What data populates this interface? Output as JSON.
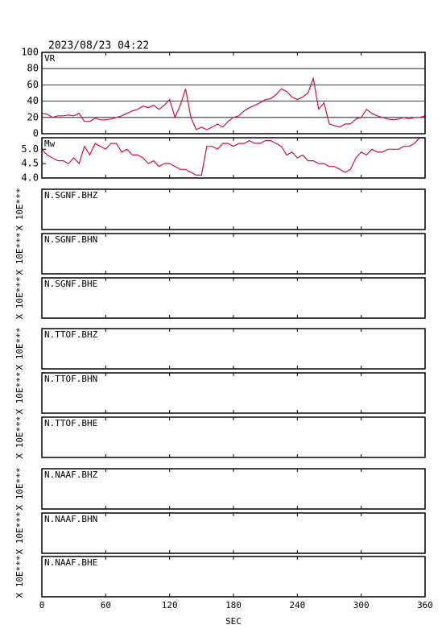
{
  "time": "2023/08/23 04:22",
  "x_axis": {
    "label": "SEC",
    "xlim": [
      0,
      360
    ],
    "xticks": [
      0,
      60,
      120,
      180,
      240,
      300,
      360
    ]
  },
  "chart_data": [
    {
      "type": "line",
      "label": "VR",
      "color": "#d0103a",
      "grid": true,
      "xlim": [
        0,
        360
      ],
      "ylim": [
        0,
        100
      ],
      "yticks": [
        0,
        20,
        40,
        60,
        80,
        100
      ],
      "x": [
        0,
        5,
        10,
        15,
        20,
        25,
        30,
        35,
        40,
        45,
        50,
        55,
        60,
        65,
        70,
        75,
        80,
        85,
        90,
        95,
        100,
        105,
        110,
        115,
        120,
        125,
        130,
        135,
        140,
        145,
        150,
        155,
        160,
        165,
        170,
        175,
        180,
        185,
        190,
        195,
        200,
        205,
        210,
        215,
        220,
        225,
        230,
        235,
        240,
        245,
        250,
        255,
        260,
        265,
        270,
        275,
        280,
        285,
        290,
        295,
        300,
        305,
        310,
        315,
        320,
        325,
        330,
        335,
        340,
        345,
        350,
        355,
        360
      ],
      "values": [
        25,
        24,
        20,
        22,
        22,
        23,
        22,
        25,
        15,
        15,
        19,
        17,
        17,
        18,
        20,
        22,
        25,
        28,
        30,
        34,
        32,
        35,
        30,
        35,
        42,
        20,
        35,
        55,
        20,
        5,
        8,
        5,
        8,
        12,
        8,
        15,
        20,
        22,
        28,
        32,
        35,
        38,
        42,
        43,
        48,
        55,
        52,
        45,
        42,
        45,
        50,
        68,
        30,
        38,
        12,
        10,
        8,
        12,
        12,
        18,
        20,
        30,
        25,
        22,
        20,
        18,
        17,
        18,
        20,
        18,
        20,
        20,
        22
      ]
    },
    {
      "type": "line",
      "label": "Mw",
      "color": "#d0103a",
      "grid": false,
      "xlim": [
        0,
        360
      ],
      "ylim": [
        4,
        5.4
      ],
      "yticks": [
        {
          "value": 4,
          "label": "4.0"
        },
        {
          "value": 4.5,
          "label": "4.5"
        },
        {
          "value": 5,
          "label": "5.0"
        }
      ],
      "x": [
        0,
        5,
        10,
        15,
        20,
        25,
        30,
        35,
        40,
        45,
        50,
        55,
        60,
        65,
        70,
        75,
        80,
        85,
        90,
        95,
        100,
        105,
        110,
        115,
        120,
        125,
        130,
        135,
        140,
        145,
        150,
        155,
        160,
        165,
        170,
        175,
        180,
        185,
        190,
        195,
        200,
        205,
        210,
        215,
        220,
        225,
        230,
        235,
        240,
        245,
        250,
        255,
        260,
        265,
        270,
        275,
        280,
        285,
        290,
        295,
        300,
        305,
        310,
        315,
        320,
        325,
        330,
        335,
        340,
        345,
        350,
        355,
        360
      ],
      "values": [
        5.0,
        4.8,
        4.7,
        4.6,
        4.6,
        4.5,
        4.7,
        4.5,
        5.1,
        4.8,
        5.2,
        5.1,
        5.0,
        5.2,
        5.2,
        4.9,
        5.0,
        4.8,
        4.8,
        4.7,
        4.5,
        4.6,
        4.4,
        4.5,
        4.5,
        4.4,
        4.3,
        4.3,
        4.2,
        4.1,
        4.1,
        5.1,
        5.1,
        5.0,
        5.2,
        5.2,
        5.1,
        5.2,
        5.2,
        5.3,
        5.2,
        5.2,
        5.3,
        5.3,
        5.2,
        5.1,
        4.8,
        4.9,
        4.7,
        4.8,
        4.6,
        4.6,
        4.5,
        4.5,
        4.4,
        4.4,
        4.3,
        4.2,
        4.3,
        4.7,
        4.9,
        4.8,
        5.0,
        4.9,
        4.9,
        5.0,
        5.0,
        5.0,
        5.1,
        5.1,
        5.2,
        5.4,
        5.4
      ]
    },
    {
      "type": "waveform",
      "label": "N.SGNF.BHZ",
      "ylabel": "X 10E***"
    },
    {
      "type": "waveform",
      "label": "N.SGNF.BHN",
      "ylabel": "X 10E***"
    },
    {
      "type": "waveform",
      "label": "N.SGNF.BHE",
      "ylabel": "X 10E***"
    },
    {
      "type": "waveform",
      "label": "N.TTOF.BHZ",
      "ylabel": "X 10E***"
    },
    {
      "type": "waveform",
      "label": "N.TTOF.BHN",
      "ylabel": "X 10E***"
    },
    {
      "type": "waveform",
      "label": "N.TTOF.BHE",
      "ylabel": "X 10E***"
    },
    {
      "type": "waveform",
      "label": "N.NAAF.BHZ",
      "ylabel": "X 10E***"
    },
    {
      "type": "waveform",
      "label": "N.NAAF.BHN",
      "ylabel": "X 10E***"
    },
    {
      "type": "waveform",
      "label": "N.NAAF.BHE",
      "ylabel": "X 10E***"
    }
  ]
}
